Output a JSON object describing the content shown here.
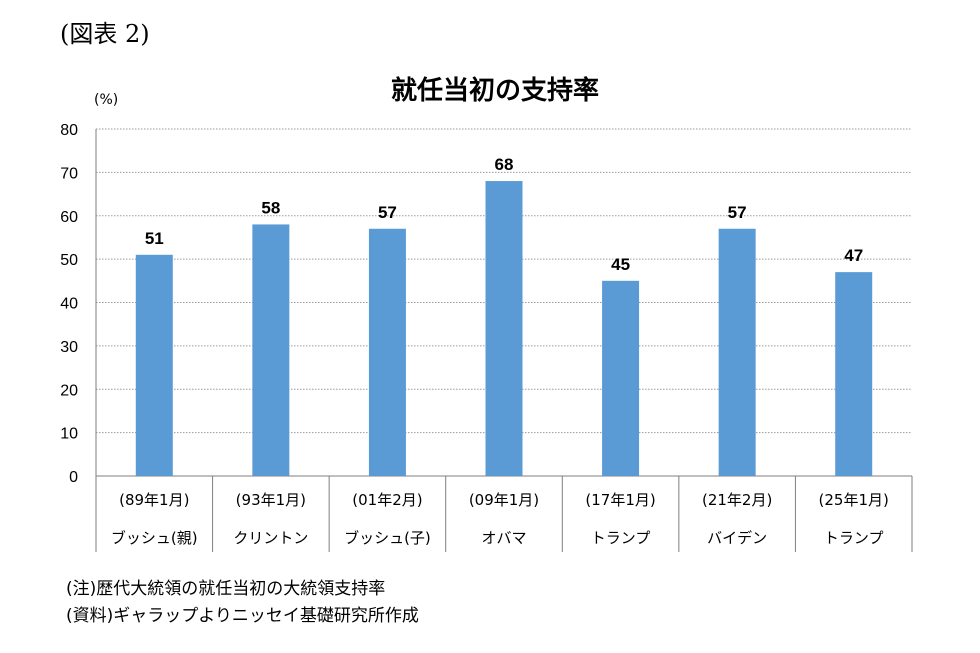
{
  "figure_label": "(図表 2)",
  "chart_data": {
    "type": "bar",
    "title": "就任当初の支持率",
    "unit": "(%)",
    "ylim": [
      0,
      80
    ],
    "yticks": [
      0,
      10,
      20,
      30,
      40,
      50,
      60,
      70,
      80
    ],
    "grid": true,
    "bar_color": "#5b9bd5",
    "categories": [
      {
        "date": "(89年1月)",
        "name": "ブッシュ(親)"
      },
      {
        "date": "(93年1月)",
        "name": "クリントン"
      },
      {
        "date": "(01年2月)",
        "name": "ブッシュ(子)"
      },
      {
        "date": "(09年1月)",
        "name": "オバマ"
      },
      {
        "date": "(17年1月)",
        "name": "トランプ"
      },
      {
        "date": "(21年2月)",
        "name": "バイデン"
      },
      {
        "date": "(25年1月)",
        "name": "トランプ"
      }
    ],
    "values": [
      51,
      58,
      57,
      68,
      45,
      57,
      47
    ]
  },
  "notes": {
    "note": "(注)歴代大統領の就任当初の大統領支持率",
    "source": "(資料)ギャラップよりニッセイ基礎研究所作成"
  }
}
